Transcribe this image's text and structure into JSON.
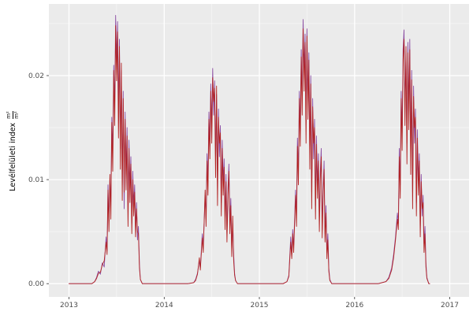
{
  "chart_data": {
    "type": "line",
    "title": "",
    "xlabel": "",
    "ylabel": "Levélfelületi index",
    "ylabel_unit_numerator": "m²",
    "ylabel_unit_denominator": "m²",
    "legend": "none",
    "grid": true,
    "style": {
      "panel_bg": "#ebebeb",
      "grid_major": "#ffffff",
      "grid_minor": "#f7f7f7",
      "tick_mark": "#333333",
      "tick_text": "#4d4d4d",
      "axis_title": "#000000"
    },
    "x_axis": {
      "ticks": [
        2013,
        2014,
        2015,
        2016,
        2017
      ],
      "tick_labels": [
        "2013",
        "2014",
        "2015",
        "2016",
        "2017"
      ],
      "minor_ticks": [
        2013.5,
        2014.5,
        2015.5,
        2016.5
      ],
      "range": [
        2012.79,
        2017.21
      ]
    },
    "y_axis": {
      "ticks": [
        0,
        0.01,
        0.02
      ],
      "tick_labels": [
        "0.00",
        "0.01",
        "0.02"
      ],
      "minor_ticks": [
        0.005,
        0.015,
        0.025
      ],
      "range": [
        -0.0013,
        0.0282
      ]
    },
    "x": [
      2013.0,
      2013.08,
      2013.16,
      2013.24,
      2013.27,
      2013.29,
      2013.31,
      2013.33,
      2013.35,
      2013.37,
      2013.39,
      2013.4,
      2013.41,
      2013.42,
      2013.43,
      2013.44,
      2013.45,
      2013.46,
      2013.47,
      2013.48,
      2013.49,
      2013.5,
      2013.51,
      2013.52,
      2013.53,
      2013.54,
      2013.55,
      2013.56,
      2013.57,
      2013.58,
      2013.59,
      2013.6,
      2013.61,
      2013.62,
      2013.63,
      2013.64,
      2013.65,
      2013.66,
      2013.67,
      2013.68,
      2013.69,
      2013.7,
      2013.71,
      2013.72,
      2013.73,
      2013.74,
      2013.75,
      2013.77,
      2013.85,
      2013.95,
      2014.05,
      2014.15,
      2014.25,
      2014.31,
      2014.33,
      2014.35,
      2014.37,
      2014.38,
      2014.4,
      2014.41,
      2014.43,
      2014.44,
      2014.45,
      2014.46,
      2014.47,
      2014.48,
      2014.49,
      2014.5,
      2014.51,
      2014.52,
      2014.53,
      2014.54,
      2014.55,
      2014.56,
      2014.57,
      2014.58,
      2014.59,
      2014.6,
      2014.61,
      2014.62,
      2014.63,
      2014.64,
      2014.65,
      2014.66,
      2014.67,
      2014.68,
      2014.69,
      2014.7,
      2014.71,
      2014.72,
      2014.73,
      2014.74,
      2014.75,
      2014.77,
      2014.85,
      2014.95,
      2015.05,
      2015.15,
      2015.25,
      2015.29,
      2015.31,
      2015.33,
      2015.34,
      2015.35,
      2015.36,
      2015.38,
      2015.39,
      2015.4,
      2015.41,
      2015.42,
      2015.43,
      2015.44,
      2015.45,
      2015.46,
      2015.47,
      2015.48,
      2015.49,
      2015.5,
      2015.51,
      2015.52,
      2015.53,
      2015.54,
      2015.55,
      2015.56,
      2015.57,
      2015.58,
      2015.59,
      2015.6,
      2015.61,
      2015.62,
      2015.63,
      2015.64,
      2015.65,
      2015.66,
      2015.67,
      2015.68,
      2015.69,
      2015.7,
      2015.71,
      2015.72,
      2015.73,
      2015.74,
      2015.76,
      2015.85,
      2015.95,
      2016.05,
      2016.15,
      2016.25,
      2016.33,
      2016.36,
      2016.39,
      2016.41,
      2016.43,
      2016.45,
      2016.46,
      2016.47,
      2016.48,
      2016.49,
      2016.5,
      2016.51,
      2016.52,
      2016.53,
      2016.54,
      2016.55,
      2016.56,
      2016.57,
      2016.58,
      2016.59,
      2016.6,
      2016.61,
      2016.62,
      2016.63,
      2016.64,
      2016.65,
      2016.66,
      2016.67,
      2016.68,
      2016.69,
      2016.7,
      2016.71,
      2016.72,
      2016.73,
      2016.74,
      2016.75,
      2016.76,
      2016.78,
      2016.79
    ],
    "series": [
      {
        "name": "lai-model-purple",
        "color": "#8b4da3",
        "values": [
          0,
          0,
          0,
          0,
          0.0002,
          0.0006,
          0.0012,
          0.0009,
          0.002,
          0.0016,
          0.0045,
          0.0032,
          0.0095,
          0.006,
          0.01,
          0.0075,
          0.016,
          0.0125,
          0.021,
          0.017,
          0.0258,
          0.0215,
          0.0252,
          0.0165,
          0.0235,
          0.013,
          0.0205,
          0.0095,
          0.0185,
          0.0072,
          0.0165,
          0.0105,
          0.015,
          0.0068,
          0.0138,
          0.0092,
          0.0122,
          0.0058,
          0.0108,
          0.0076,
          0.0095,
          0.0052,
          0.0078,
          0.0042,
          0.0055,
          0.0018,
          0.0004,
          0,
          0,
          0,
          0,
          0,
          0,
          0.0001,
          0.0004,
          0.001,
          0.0022,
          0.0015,
          0.0048,
          0.0035,
          0.0085,
          0.0062,
          0.0125,
          0.0098,
          0.0165,
          0.0132,
          0.0192,
          0.015,
          0.0207,
          0.0162,
          0.0195,
          0.0118,
          0.0182,
          0.009,
          0.0168,
          0.0122,
          0.0152,
          0.0078,
          0.0138,
          0.0098,
          0.012,
          0.0062,
          0.0105,
          0.0048,
          0.0092,
          0.0115,
          0.0058,
          0.0082,
          0.0032,
          0.0058,
          0.0028,
          0.001,
          0.0003,
          0,
          0,
          0,
          0,
          0,
          0,
          0.0002,
          0.0008,
          0.0045,
          0.0028,
          0.0052,
          0.0035,
          0.009,
          0.0065,
          0.014,
          0.0108,
          0.0185,
          0.0148,
          0.0225,
          0.018,
          0.0254,
          0.0205,
          0.024,
          0.0155,
          0.0245,
          0.0175,
          0.0222,
          0.0128,
          0.02,
          0.0088,
          0.0178,
          0.012,
          0.0158,
          0.0075,
          0.0142,
          0.0095,
          0.0125,
          0.006,
          0.0108,
          0.013,
          0.0052,
          0.0092,
          0.0118,
          0.0048,
          0.0075,
          0.003,
          0.0048,
          0.0015,
          0.0004,
          0,
          0,
          0,
          0,
          0,
          0,
          0.0002,
          0.0006,
          0.0015,
          0.0028,
          0.0045,
          0.0068,
          0.0058,
          0.013,
          0.0095,
          0.0185,
          0.0145,
          0.0225,
          0.0244,
          0.0172,
          0.0218,
          0.0135,
          0.0232,
          0.0165,
          0.0235,
          0.0122,
          0.0205,
          0.0088,
          0.019,
          0.0135,
          0.0168,
          0.0078,
          0.0148,
          0.0098,
          0.0125,
          0.0055,
          0.0105,
          0.0065,
          0.0085,
          0.0038,
          0.0055,
          0.002,
          0.0006,
          0,
          0
        ]
      },
      {
        "name": "lai-model-red",
        "color": "#b22222",
        "values": [
          0,
          0,
          0,
          0,
          0.0002,
          0.0005,
          0.001,
          0.0011,
          0.0018,
          0.0022,
          0.004,
          0.0028,
          0.009,
          0.005,
          0.0105,
          0.0062,
          0.0155,
          0.0108,
          0.0205,
          0.0152,
          0.0248,
          0.0195,
          0.0242,
          0.014,
          0.0228,
          0.011,
          0.0212,
          0.008,
          0.0178,
          0.0088,
          0.0158,
          0.009,
          0.0142,
          0.0055,
          0.013,
          0.0078,
          0.0115,
          0.0048,
          0.01,
          0.0065,
          0.0088,
          0.0045,
          0.0072,
          0.005,
          0.0048,
          0.0015,
          0.0004,
          0,
          0,
          0,
          0,
          0,
          0,
          0.0001,
          0.0003,
          0.0009,
          0.0025,
          0.0013,
          0.0044,
          0.003,
          0.009,
          0.0055,
          0.0118,
          0.0085,
          0.0158,
          0.012,
          0.0185,
          0.0135,
          0.0198,
          0.0175,
          0.0188,
          0.0102,
          0.019,
          0.0075,
          0.016,
          0.0135,
          0.0145,
          0.0065,
          0.013,
          0.0085,
          0.0112,
          0.0052,
          0.0098,
          0.004,
          0.0085,
          0.0108,
          0.0048,
          0.0075,
          0.0026,
          0.0065,
          0.0022,
          0.0008,
          0.0003,
          0,
          0,
          0,
          0,
          0,
          0,
          0.0002,
          0.0007,
          0.004,
          0.0024,
          0.0048,
          0.003,
          0.0085,
          0.0055,
          0.0132,
          0.0095,
          0.0178,
          0.0132,
          0.0218,
          0.0162,
          0.0245,
          0.0185,
          0.0232,
          0.0135,
          0.0238,
          0.0158,
          0.0215,
          0.011,
          0.0192,
          0.0072,
          0.017,
          0.0135,
          0.015,
          0.0062,
          0.0134,
          0.0082,
          0.0118,
          0.005,
          0.01,
          0.0122,
          0.0044,
          0.0085,
          0.011,
          0.004,
          0.0068,
          0.0024,
          0.0042,
          0.0012,
          0.0003,
          0,
          0,
          0,
          0,
          0,
          0,
          0.0002,
          0.0005,
          0.0013,
          0.0025,
          0.0042,
          0.0062,
          0.0052,
          0.0122,
          0.0082,
          0.0178,
          0.0128,
          0.0215,
          0.0235,
          0.0152,
          0.0228,
          0.0115,
          0.0222,
          0.0148,
          0.0225,
          0.0105,
          0.0196,
          0.0072,
          0.018,
          0.015,
          0.016,
          0.0065,
          0.014,
          0.0085,
          0.0118,
          0.0045,
          0.0098,
          0.0072,
          0.0078,
          0.003,
          0.0048,
          0.0016,
          0.0005,
          0,
          0
        ]
      }
    ]
  }
}
